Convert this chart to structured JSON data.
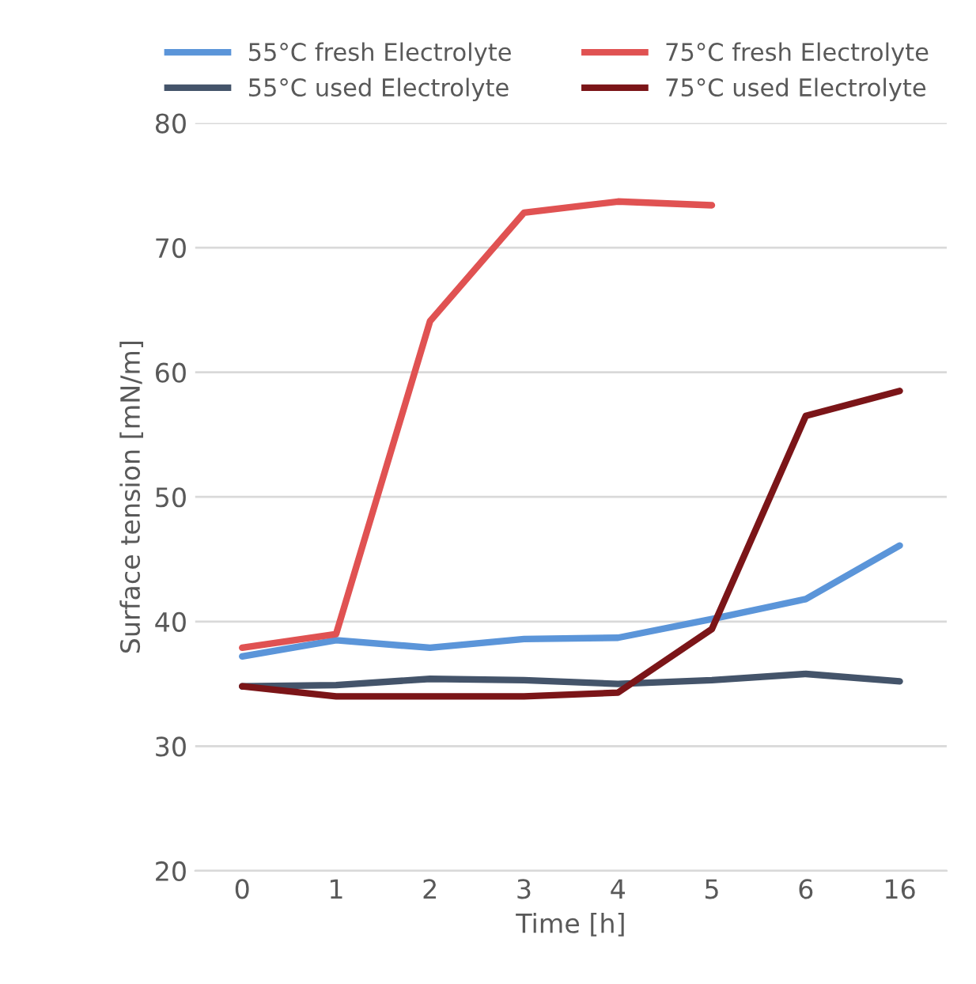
{
  "chart_data": {
    "type": "line",
    "xlabel": "Time [h]",
    "ylabel": "Surface tension [mN/m]",
    "categories": [
      "0",
      "1",
      "2",
      "3",
      "4",
      "5",
      "6",
      "16"
    ],
    "series": [
      {
        "name": "55°C fresh Electrolyte",
        "color": "#5b95d9",
        "values": [
          37.2,
          38.5,
          37.9,
          38.6,
          38.7,
          40.2,
          41.8,
          46.1
        ]
      },
      {
        "name": "55°C used Electrolyte",
        "color": "#44546a",
        "values": [
          34.8,
          34.9,
          35.4,
          35.3,
          35.0,
          35.3,
          35.8,
          35.2
        ]
      },
      {
        "name": "75°C fresh Electrolyte",
        "color": "#e05252",
        "values": [
          37.9,
          39.0,
          64.1,
          72.8,
          73.7,
          73.4,
          null,
          null
        ]
      },
      {
        "name": "75°C used Electrolyte",
        "color": "#7b1518",
        "values": [
          34.8,
          34.0,
          34.0,
          34.0,
          34.3,
          39.4,
          56.5,
          58.5
        ]
      }
    ],
    "ylim": [
      20,
      80
    ],
    "yticks": [
      20,
      30,
      40,
      50,
      60,
      70,
      80
    ],
    "grid": "y",
    "legend": "top",
    "marker": "none",
    "line_style": "solid"
  }
}
